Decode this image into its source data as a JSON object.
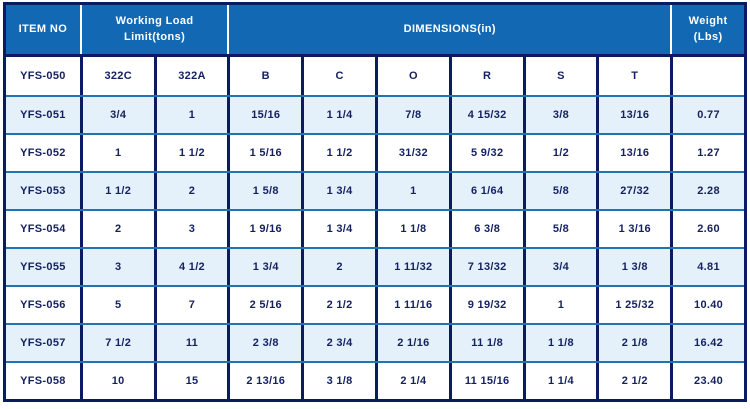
{
  "table": {
    "header": {
      "item_no": "ITEM NO",
      "working_load_limit": "Working Load\nLimit(tons)",
      "dimensions": "DIMENSIONS(in)",
      "weight": "Weight\n(Lbs)"
    },
    "sub_header": [
      "YFS-050",
      "322C",
      "322A",
      "B",
      "C",
      "O",
      "R",
      "S",
      "T",
      ""
    ],
    "rows": [
      [
        "YFS-051",
        "3/4",
        "1",
        "15/16",
        "1 1/4",
        "7/8",
        "4 15/32",
        "3/8",
        "13/16",
        "0.77"
      ],
      [
        "YFS-052",
        "1",
        "1 1/2",
        "1 5/16",
        "1 1/2",
        "31/32",
        "5 9/32",
        "1/2",
        "13/16",
        "1.27"
      ],
      [
        "YFS-053",
        "1 1/2",
        "2",
        "1 5/8",
        "1 3/4",
        "1",
        "6 1/64",
        "5/8",
        "27/32",
        "2.28"
      ],
      [
        "YFS-054",
        "2",
        "3",
        "1 9/16",
        "1 3/4",
        "1 1/8",
        "6 3/8",
        "5/8",
        "1 3/16",
        "2.60"
      ],
      [
        "YFS-055",
        "3",
        "4 1/2",
        "1 3/4",
        "2",
        "1 11/32",
        "7 13/32",
        "3/4",
        "1 3/8",
        "4.81"
      ],
      [
        "YFS-056",
        "5",
        "7",
        "2 5/16",
        "2 1/2",
        "1 11/16",
        "9 19/32",
        "1",
        "1 25/32",
        "10.40"
      ],
      [
        "YFS-057",
        "7 1/2",
        "11",
        "2 3/8",
        "2 3/4",
        "2 1/16",
        "11 1/8",
        "1 1/8",
        "2 1/8",
        "16.42"
      ],
      [
        "YFS-058",
        "10",
        "15",
        "2 13/16",
        "3 1/8",
        "2 1/4",
        "11 15/16",
        "1 1/4",
        "2 1/2",
        "23.40"
      ]
    ],
    "colors": {
      "header_bg": "#1268b3",
      "header_text": "#ffffff",
      "border_dark": "#0a1b60",
      "row_separator": "#2273b0",
      "row_alt_bg": "#e4f1fb",
      "cell_text": "#14215f"
    }
  }
}
